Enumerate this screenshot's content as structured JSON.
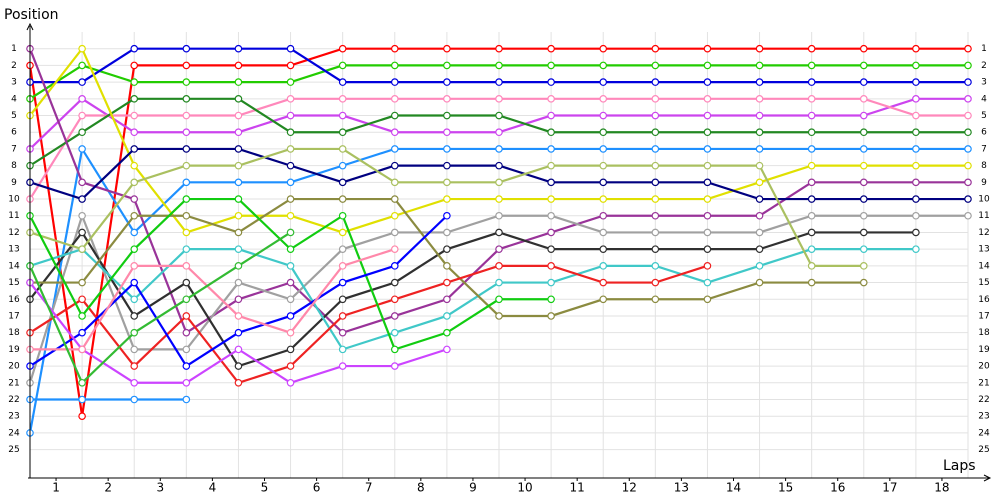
{
  "chart_data": {
    "type": "line",
    "y_label": "Position",
    "x_label": "Laps",
    "x": [
      0,
      1,
      2,
      3,
      4,
      5,
      6,
      7,
      8,
      9,
      10,
      11,
      12,
      13,
      14,
      15,
      16,
      17,
      18
    ],
    "xlim": [
      0,
      18
    ],
    "xticks": [
      {
        "value": 0.5,
        "label": "1"
      },
      {
        "value": 1.5,
        "label": "2"
      },
      {
        "value": 2.5,
        "label": "3"
      },
      {
        "value": 3.5,
        "label": "4"
      },
      {
        "value": 4.5,
        "label": "5"
      },
      {
        "value": 5.5,
        "label": "6"
      },
      {
        "value": 6.5,
        "label": "7"
      },
      {
        "value": 7.5,
        "label": "8"
      },
      {
        "value": 8.5,
        "label": "9"
      },
      {
        "value": 9.5,
        "label": "10"
      },
      {
        "value": 10.5,
        "label": "11"
      },
      {
        "value": 11.5,
        "label": "12"
      },
      {
        "value": 12.5,
        "label": "13"
      },
      {
        "value": 13.5,
        "label": "14"
      },
      {
        "value": 14.5,
        "label": "15"
      },
      {
        "value": 15.5,
        "label": "16"
      },
      {
        "value": 16.5,
        "label": "17"
      },
      {
        "value": 17.5,
        "label": "18"
      }
    ],
    "ylim": [
      26.7,
      0
    ],
    "yticks": [
      1,
      2,
      3,
      4,
      5,
      6,
      7,
      8,
      9,
      10,
      11,
      12,
      13,
      14,
      15,
      16,
      17,
      18,
      19,
      20,
      21,
      22,
      23,
      24,
      25
    ],
    "grid": true,
    "series": [
      {
        "color": "#ff0000",
        "values": [
          2,
          23,
          2,
          2,
          2,
          2,
          1,
          1,
          1,
          1,
          1,
          1,
          1,
          1,
          1,
          1,
          1,
          1,
          1
        ]
      },
      {
        "color": "#22cc00",
        "values": [
          4,
          2,
          3,
          3,
          3,
          3,
          2,
          2,
          2,
          2,
          2,
          2,
          2,
          2,
          2,
          2,
          2,
          2,
          2
        ]
      },
      {
        "color": "#0000dd",
        "values": [
          3,
          3,
          1,
          1,
          1,
          1,
          3,
          3,
          3,
          3,
          3,
          3,
          3,
          3,
          3,
          3,
          3,
          3,
          3
        ]
      },
      {
        "color": "#cc44ee",
        "values": [
          7,
          4,
          6,
          6,
          6,
          5,
          5,
          6,
          6,
          6,
          5,
          5,
          5,
          5,
          5,
          5,
          5,
          4,
          4
        ]
      },
      {
        "color": "#ff88bb",
        "values": [
          10,
          5,
          5,
          5,
          5,
          4,
          4,
          4,
          4,
          4,
          4,
          4,
          4,
          4,
          4,
          4,
          4,
          5,
          5
        ]
      },
      {
        "color": "#228822",
        "values": [
          8,
          6,
          4,
          4,
          4,
          6,
          6,
          5,
          5,
          5,
          6,
          6,
          6,
          6,
          6,
          6,
          6,
          6,
          6
        ]
      },
      {
        "color": "#1e90ff",
        "values": [
          24,
          7,
          12,
          9,
          9,
          9,
          8,
          7,
          7,
          7,
          7,
          7,
          7,
          7,
          7,
          7,
          7,
          7,
          7
        ]
      },
      {
        "color": "#e0e000",
        "values": [
          5,
          1,
          8,
          12,
          11,
          11,
          12,
          11,
          10,
          10,
          10,
          10,
          10,
          10,
          9,
          8,
          8,
          8,
          8
        ]
      },
      {
        "color": "#993399",
        "values": [
          1,
          9,
          10,
          18,
          16,
          15,
          18,
          17,
          16,
          13,
          12,
          11,
          11,
          11,
          11,
          9,
          9,
          9,
          9
        ]
      },
      {
        "color": "#000080",
        "values": [
          9,
          10,
          7,
          7,
          7,
          8,
          9,
          8,
          8,
          8,
          9,
          9,
          9,
          9,
          10,
          10,
          10,
          10,
          10
        ]
      },
      {
        "color": "#a0a0a0",
        "values": [
          21,
          11,
          19,
          19,
          15,
          16,
          13,
          12,
          12,
          11,
          11,
          12,
          12,
          12,
          12,
          11,
          11,
          11,
          11
        ]
      },
      {
        "color": "#303030",
        "values": [
          16,
          12,
          17,
          15,
          20,
          19,
          16,
          15,
          13,
          12,
          13,
          13,
          13,
          13,
          13,
          12,
          12,
          12,
          null
        ]
      },
      {
        "color": "#40c8c8",
        "values": [
          14,
          13,
          16,
          13,
          13,
          14,
          19,
          18,
          17,
          15,
          15,
          14,
          14,
          15,
          14,
          13,
          13,
          13,
          null
        ]
      },
      {
        "color": "#aac060",
        "values": [
          12,
          13,
          9,
          8,
          8,
          7,
          7,
          9,
          9,
          9,
          8,
          8,
          8,
          8,
          8,
          14,
          14,
          null,
          null
        ]
      },
      {
        "color": "#8b8b40",
        "values": [
          15,
          15,
          11,
          11,
          12,
          10,
          10,
          10,
          14,
          17,
          17,
          16,
          16,
          16,
          15,
          15,
          15,
          null,
          null
        ]
      },
      {
        "color": "#ee2222",
        "values": [
          18,
          16,
          20,
          17,
          21,
          20,
          17,
          16,
          15,
          14,
          14,
          15,
          15,
          14,
          null,
          null,
          null,
          null,
          null
        ]
      },
      {
        "color": "#11cc11",
        "values": [
          11,
          17,
          13,
          10,
          10,
          13,
          11,
          19,
          18,
          16,
          16,
          null,
          null,
          null,
          null,
          null,
          null,
          null,
          null
        ]
      },
      {
        "color": "#0000ff",
        "values": [
          20,
          18,
          15,
          20,
          18,
          17,
          15,
          14,
          11,
          null,
          null,
          null,
          null,
          null,
          null,
          null,
          null,
          null,
          null
        ]
      },
      {
        "color": "#cc44ff",
        "values": [
          15,
          19,
          21,
          21,
          19,
          21,
          20,
          20,
          19,
          null,
          null,
          null,
          null,
          null,
          null,
          null,
          null,
          null,
          null
        ]
      },
      {
        "color": "#ff88aa",
        "values": [
          19,
          19,
          14,
          14,
          17,
          18,
          14,
          13,
          null,
          null,
          null,
          null,
          null,
          null,
          null,
          null,
          null,
          null,
          null
        ]
      },
      {
        "color": "#33bb33",
        "values": [
          14,
          21,
          18,
          16,
          14,
          12,
          null,
          null,
          null,
          null,
          null,
          null,
          null,
          null,
          null,
          null,
          null,
          null,
          null
        ]
      },
      {
        "color": "#1e90ff",
        "values": [
          22,
          22,
          22,
          22,
          null,
          null,
          null,
          null,
          null,
          null,
          null,
          null,
          null,
          null,
          null,
          null,
          null,
          null,
          null
        ]
      }
    ]
  }
}
